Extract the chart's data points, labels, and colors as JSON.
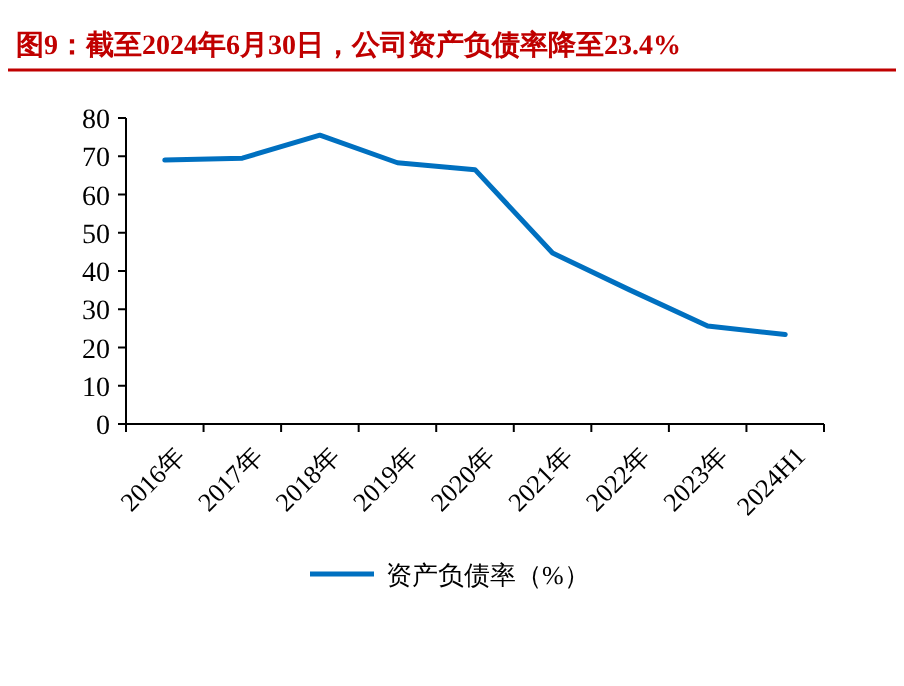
{
  "chart_data": {
    "type": "line",
    "title": "图9：截至2024年6月30日，公司资产负债率降至23.4%",
    "categories": [
      "2016年",
      "2017年",
      "2018年",
      "2019年",
      "2020年",
      "2021年",
      "2022年",
      "2023年",
      "2024H1"
    ],
    "series": [
      {
        "name": "资产负债率（%）",
        "color": "#0070c0",
        "values": [
          69.0,
          69.5,
          75.5,
          68.3,
          66.5,
          44.7,
          35.0,
          25.6,
          23.4
        ]
      }
    ],
    "ylim": [
      0,
      80
    ],
    "yticks": [
      0,
      10,
      20,
      30,
      40,
      50,
      60,
      70,
      80
    ],
    "grid": false,
    "legend": "bottom",
    "marker": "none",
    "line_style": "solid"
  }
}
